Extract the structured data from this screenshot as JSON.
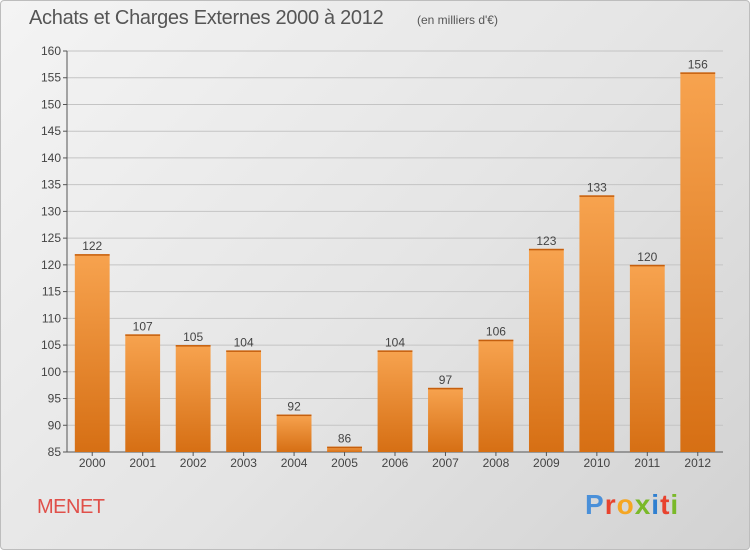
{
  "header": {
    "title": "Achats et Charges Externes 2000 à 2012",
    "subtitle": "(en milliers d'€)"
  },
  "footer": {
    "commune": "MENET",
    "brand": "Proxiti",
    "brand_colors": [
      "#4a90d9",
      "#e8432e",
      "#f5a623",
      "#7ab929",
      "#2f7fd0",
      "#e8432e",
      "#7ab929"
    ]
  },
  "chart_data": {
    "type": "bar",
    "categories": [
      "2000",
      "2001",
      "2002",
      "2003",
      "2004",
      "2005",
      "2006",
      "2007",
      "2008",
      "2009",
      "2010",
      "2011",
      "2012"
    ],
    "values": [
      122,
      107,
      105,
      104,
      92,
      86,
      104,
      97,
      106,
      123,
      133,
      120,
      156
    ],
    "title": "Achats et Charges Externes 2000 à 2012",
    "subtitle": "(en milliers d'€)",
    "xlabel": "",
    "ylabel": "",
    "ylim": [
      85,
      160
    ],
    "yticks": [
      85,
      90,
      95,
      100,
      105,
      110,
      115,
      120,
      125,
      130,
      135,
      140,
      145,
      150,
      155,
      160
    ],
    "grid": true,
    "bar_color_top": "#f7a34f",
    "bar_color_bottom": "#d66f14"
  }
}
